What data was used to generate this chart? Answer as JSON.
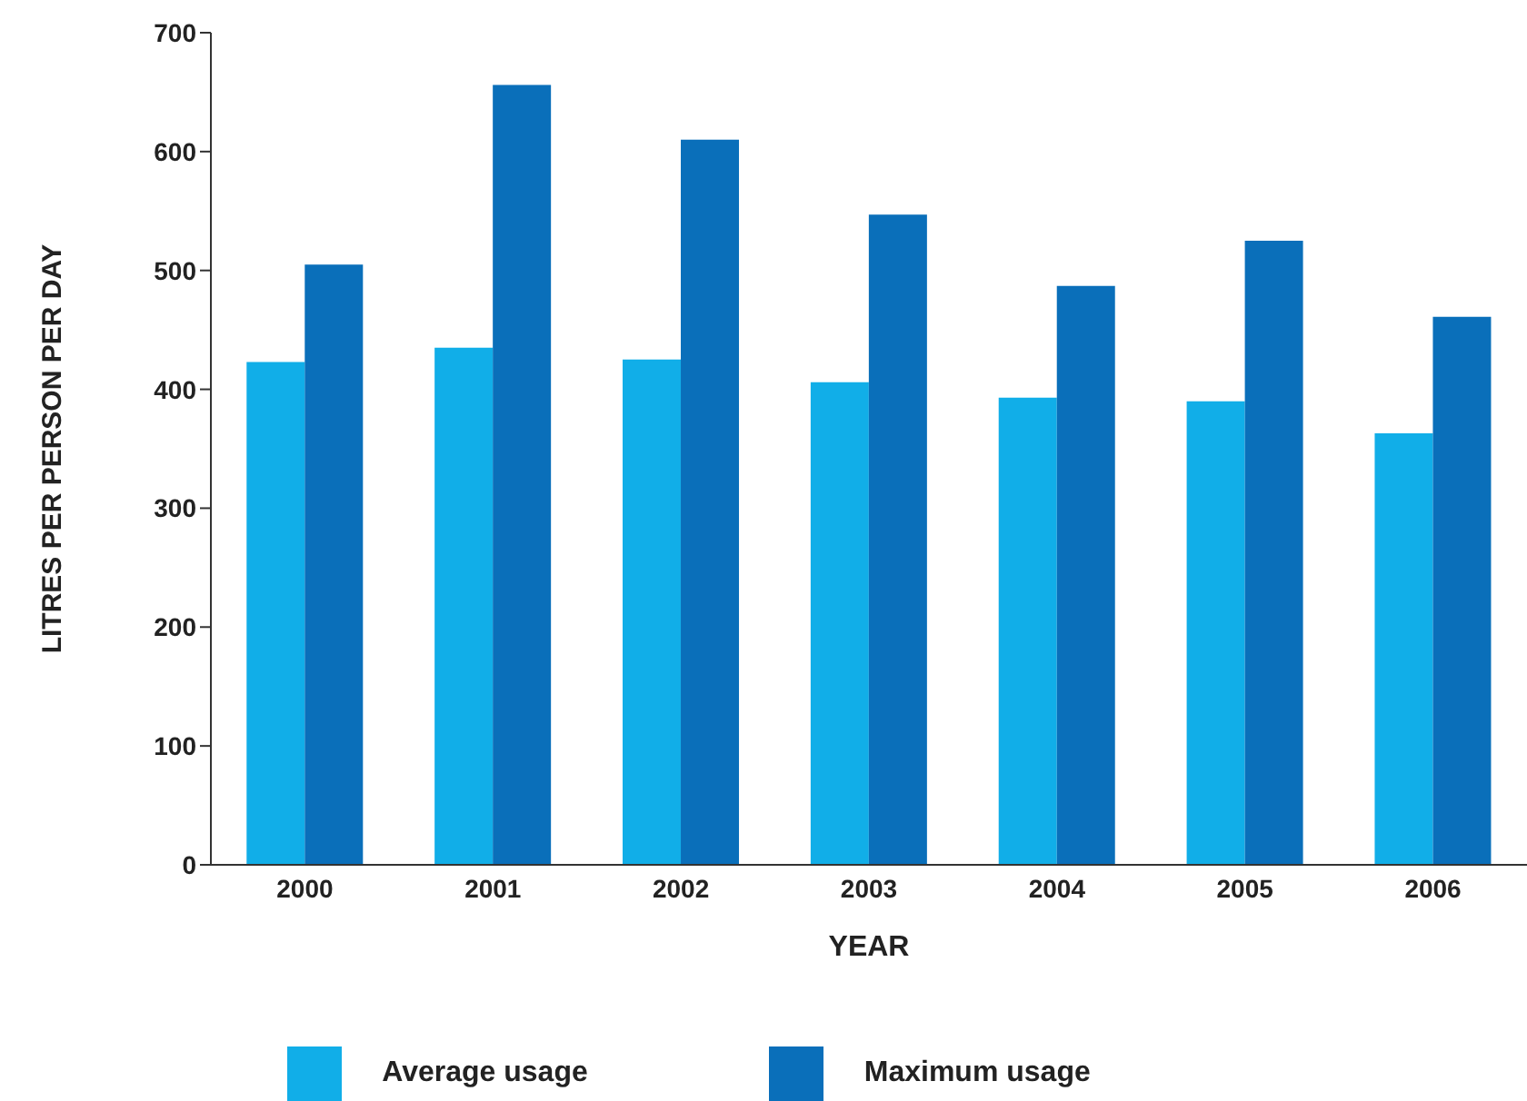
{
  "chart_data": {
    "type": "bar",
    "xlabel": "YEAR",
    "ylabel": "LITRES PER PERSON PER DAY",
    "categories": [
      "2000",
      "2001",
      "2002",
      "2003",
      "2004",
      "2005",
      "2006"
    ],
    "series": [
      {
        "name": "Average usage",
        "color": "#11aee8",
        "values": [
          423,
          435,
          425,
          406,
          393,
          390,
          363
        ]
      },
      {
        "name": "Maximum usage",
        "color": "#0a6fba",
        "values": [
          505,
          656,
          610,
          547,
          487,
          525,
          461
        ]
      }
    ],
    "ylim": [
      0,
      700
    ],
    "yticks": [
      0,
      100,
      200,
      300,
      400,
      500,
      600,
      700
    ],
    "grid": false,
    "legend": "bottom"
  }
}
